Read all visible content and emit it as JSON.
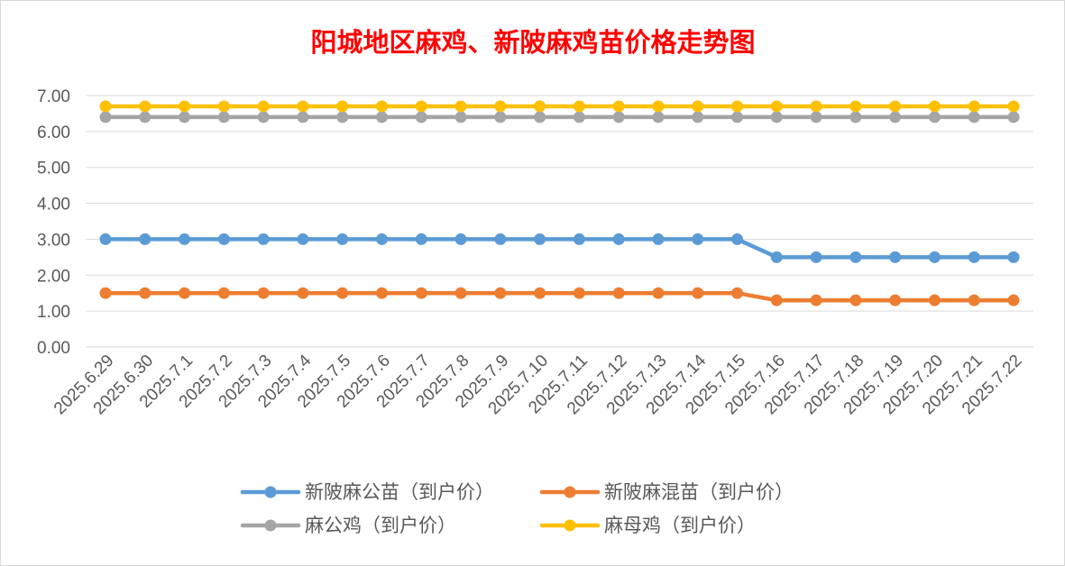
{
  "chart_data": {
    "type": "line",
    "title": "阳城地区麻鸡、新陂麻鸡苗价格走势图",
    "xlabel": "",
    "ylabel": "",
    "ylim": [
      0,
      7
    ],
    "yticks": [
      "0.00",
      "1.00",
      "2.00",
      "3.00",
      "4.00",
      "5.00",
      "6.00",
      "7.00"
    ],
    "grid": true,
    "legend_position": "bottom",
    "categories": [
      "2025.6.29",
      "2025.6.30",
      "2025.7.1",
      "2025.7.2",
      "2025.7.3",
      "2025.7.4",
      "2025.7.5",
      "2025.7.6",
      "2025.7.7",
      "2025.7.8",
      "2025.7.9",
      "2025.7.10",
      "2025.7.11",
      "2025.7.12",
      "2025.7.13",
      "2025.7.14",
      "2025.7.15",
      "2025.7.16",
      "2025.7.17",
      "2025.7.18",
      "2025.7.19",
      "2025.7.20",
      "2025.7.21",
      "2025.7.22"
    ],
    "series": [
      {
        "name": "新陂麻公苗（到户价）",
        "color": "#5b9bd5",
        "values": [
          3,
          3,
          3,
          3,
          3,
          3,
          3,
          3,
          3,
          3,
          3,
          3,
          3,
          3,
          3,
          3,
          3,
          2.5,
          2.5,
          2.5,
          2.5,
          2.5,
          2.5,
          2.5
        ]
      },
      {
        "name": "新陂麻混苗（到户价）",
        "color": "#ed7d31",
        "values": [
          1.5,
          1.5,
          1.5,
          1.5,
          1.5,
          1.5,
          1.5,
          1.5,
          1.5,
          1.5,
          1.5,
          1.5,
          1.5,
          1.5,
          1.5,
          1.5,
          1.5,
          1.3,
          1.3,
          1.3,
          1.3,
          1.3,
          1.3,
          1.3
        ]
      },
      {
        "name": "麻公鸡（到户价）",
        "color": "#a5a5a5",
        "values": [
          6.4,
          6.4,
          6.4,
          6.4,
          6.4,
          6.4,
          6.4,
          6.4,
          6.4,
          6.4,
          6.4,
          6.4,
          6.4,
          6.4,
          6.4,
          6.4,
          6.4,
          6.4,
          6.4,
          6.4,
          6.4,
          6.4,
          6.4,
          6.4
        ]
      },
      {
        "name": "麻母鸡（到户价）",
        "color": "#ffc000",
        "values": [
          6.7,
          6.7,
          6.7,
          6.7,
          6.7,
          6.7,
          6.7,
          6.7,
          6.7,
          6.7,
          6.7,
          6.7,
          6.7,
          6.7,
          6.7,
          6.7,
          6.7,
          6.7,
          6.7,
          6.7,
          6.7,
          6.7,
          6.7,
          6.7
        ]
      }
    ],
    "title_color": "#ff0000",
    "axis_text_color": "#595959",
    "gridline_color": "#d9d9d9"
  }
}
